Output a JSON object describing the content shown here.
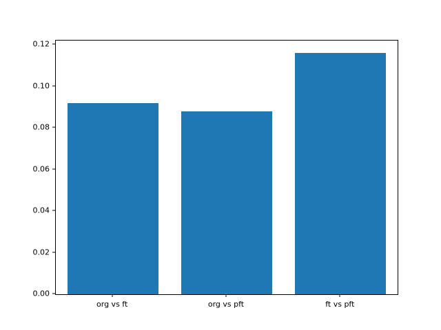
{
  "chart_data": {
    "type": "bar",
    "title": "",
    "xlabel": "",
    "ylabel": "",
    "categories": [
      "org vs ft",
      "org vs pft",
      "ft vs pft"
    ],
    "values": [
      0.092,
      0.088,
      0.116
    ],
    "ylim": [
      0,
      0.122
    ],
    "yticks": [
      "0.00",
      "0.02",
      "0.04",
      "0.06",
      "0.08",
      "0.10",
      "0.12"
    ],
    "bar_color": "#1f77b4",
    "grid": false,
    "legend": "none"
  }
}
